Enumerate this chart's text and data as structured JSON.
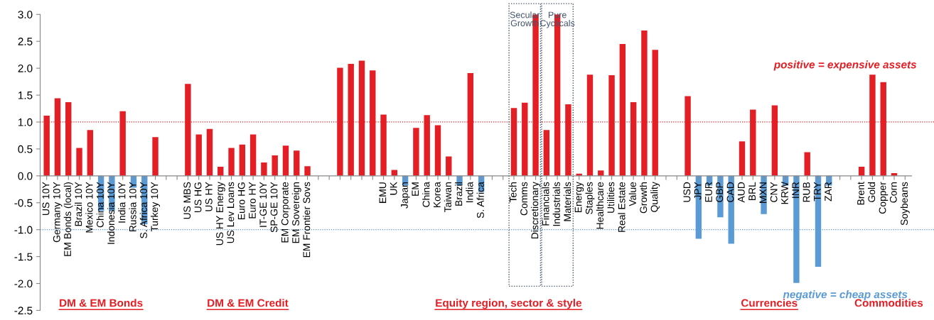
{
  "chart_data": {
    "type": "bar",
    "categories": [
      "US 10Y",
      "Germany 10Y",
      "EM Bonds (local)",
      "Brazil 10Y",
      "Mexico 10Y",
      "China 10Y",
      "Indonesia 10Y",
      "India 10Y",
      "Russia 10Y",
      "S. Africa 10Y",
      "Turkey 10Y",
      null,
      null,
      "US MBS",
      "US HG",
      "US HY",
      "US HY Energy",
      "US Lev Loans",
      "Euro HG",
      "Euro HY",
      "IT-GE 10Y",
      "SP-GE 10Y",
      "EM Corporate",
      "EM Sovereign",
      "EM Frontier Sovs",
      null,
      null,
      null,
      null,
      null,
      null,
      "EMU",
      "UK",
      "Japan",
      "EM",
      "China",
      "Korea",
      "Taiwan",
      "Brazil",
      "India",
      "S. Africa",
      null,
      null,
      "Tech",
      "Comms",
      "Discretionary",
      "Financials",
      "Industrials",
      "Materials",
      "Energy",
      "Staples",
      "Healthcare",
      "Utilities",
      "Real Estate",
      "Value",
      "Growth",
      "Quality",
      null,
      null,
      "USD",
      "JPY",
      "EUR",
      "GBP",
      "CAD",
      "AUD",
      "BRL",
      "MXN",
      "CNY",
      "KRW",
      "INR",
      "RUB",
      "TRY",
      "ZAR",
      null,
      null,
      "Brent",
      "Gold",
      "Copper",
      "Corn",
      "Soybeans"
    ],
    "values": [
      1.12,
      1.44,
      1.37,
      0.52,
      0.85,
      -0.65,
      -0.65,
      1.2,
      -0.22,
      -0.9,
      0.72,
      null,
      null,
      1.71,
      0.77,
      0.87,
      0.17,
      0.52,
      0.58,
      0.77,
      0.25,
      0.38,
      0.56,
      0.47,
      0.18,
      null,
      null,
      2.01,
      2.08,
      2.14,
      1.96,
      1.14,
      0.11,
      -0.18,
      0.89,
      1.13,
      0.94,
      0.36,
      -0.18,
      1.91,
      -0.3,
      null,
      null,
      1.26,
      1.36,
      3.0,
      0.85,
      3.0,
      1.33,
      0.04,
      1.88,
      0.1,
      1.87,
      2.45,
      1.37,
      2.7,
      2.34,
      null,
      null,
      1.48,
      -1.17,
      -0.18,
      -0.77,
      -1.26,
      0.64,
      1.23,
      -0.71,
      1.31,
      -0.18,
      -1.99,
      0.44,
      -1.69,
      -0.18,
      null,
      null,
      0.17,
      1.88,
      1.74,
      0.05,
      0
    ],
    "colors": [
      "#e31e24",
      "#e31e24",
      "#e31e24",
      "#e31e24",
      "#e31e24",
      "#5b9bd5",
      "#5b9bd5",
      "#e31e24",
      "#5b9bd5",
      "#5b9bd5",
      "#e31e24",
      "#e31e24",
      "#e31e24",
      "#e31e24",
      "#e31e24",
      "#e31e24",
      "#e31e24",
      "#e31e24",
      "#e31e24",
      "#e31e24",
      "#e31e24",
      "#e31e24",
      "#e31e24",
      "#e31e24",
      "#e31e24",
      "#e31e24",
      "#e31e24",
      "#e31e24",
      "#e31e24",
      "#e31e24",
      "#e31e24",
      "#e31e24",
      "#e31e24",
      "#5b9bd5",
      "#e31e24",
      "#e31e24",
      "#e31e24",
      "#e31e24",
      "#5b9bd5",
      "#e31e24",
      "#5b9bd5",
      "#e31e24",
      "#e31e24",
      "#e31e24",
      "#e31e24",
      "#e31e24",
      "#e31e24",
      "#e31e24",
      "#e31e24",
      "#e31e24",
      "#e31e24",
      "#e31e24",
      "#e31e24",
      "#e31e24",
      "#e31e24",
      "#e31e24",
      "#e31e24",
      "#e31e24",
      "#e31e24",
      "#e31e24",
      "#5b9bd5",
      "#5b9bd5",
      "#5b9bd5",
      "#5b9bd5",
      "#e31e24",
      "#e31e24",
      "#5b9bd5",
      "#e31e24",
      "#5b9bd5",
      "#5b9bd5",
      "#e31e24",
      "#5b9bd5",
      "#5b9bd5",
      "#e31e24",
      "#e31e24",
      "#e31e24",
      "#e31e24",
      "#e31e24",
      "#e31e24",
      "#e31e24"
    ],
    "ylim": [
      -2.5,
      3.0
    ],
    "yticks": [
      {
        "value": -2.5,
        "label": "-2.5"
      },
      {
        "value": -2.0,
        "label": "-2.0"
      },
      {
        "value": -1.5,
        "label": "-1.5"
      },
      {
        "value": -1.0,
        "label": "-1.0"
      },
      {
        "value": -0.5,
        "label": "-0.5"
      },
      {
        "value": 0,
        "label": "0.0"
      },
      {
        "value": 0.5,
        "label": "0.5"
      },
      {
        "value": 1.0,
        "label": "1.0"
      },
      {
        "value": 1.5,
        "label": "1.5"
      },
      {
        "value": 2.0,
        "label": "2.0"
      },
      {
        "value": 2.5,
        "label": "2.5"
      },
      {
        "value": 3.0,
        "label": "3.0"
      }
    ],
    "ref_lines": [
      {
        "axis": "y",
        "value": 1.0,
        "color": "#e31e24",
        "line_style": "dotted"
      },
      {
        "axis": "y",
        "value": -1.0,
        "color": "#5b9bd5",
        "line_style": "dotted"
      }
    ],
    "annotations": [
      "DM & EM Bonds",
      "DM & EM Credit",
      "Equity region, sector & style",
      "Currencies",
      "Commodities",
      "positive = expensive assets",
      "negative = cheap assets",
      "Secular\nGrowth",
      "Pure\nCyclicals"
    ],
    "grid": false,
    "legend": false
  }
}
